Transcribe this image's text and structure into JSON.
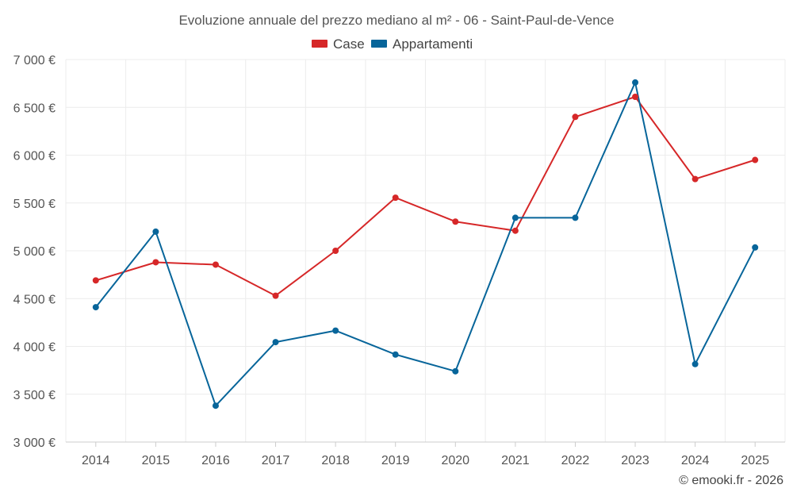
{
  "chart_data": {
    "type": "line",
    "title": "Evoluzione annuale del prezzo mediano al m² - 06 - Saint-Paul-de-Vence",
    "categories": [
      "2014",
      "2015",
      "2016",
      "2017",
      "2018",
      "2019",
      "2020",
      "2021",
      "2022",
      "2023",
      "2024",
      "2025"
    ],
    "ylim": [
      3000,
      7000
    ],
    "yticks": [
      {
        "value": 3000,
        "label": "3 000 €"
      },
      {
        "value": 3500,
        "label": "3 500 €"
      },
      {
        "value": 4000,
        "label": "4 000 €"
      },
      {
        "value": 4500,
        "label": "4 500 €"
      },
      {
        "value": 5000,
        "label": "5 000 €"
      },
      {
        "value": 5500,
        "label": "5 500 €"
      },
      {
        "value": 6000,
        "label": "6 000 €"
      },
      {
        "value": 6500,
        "label": "6 500 €"
      },
      {
        "value": 7000,
        "label": "7 000 €"
      }
    ],
    "grid": true,
    "legend_position": "top-center",
    "series": [
      {
        "name": "Case",
        "color": "#d62728",
        "values": [
          4690,
          4880,
          4855,
          4530,
          5000,
          5555,
          5305,
          5210,
          6400,
          6610,
          5750,
          5950
        ]
      },
      {
        "name": "Appartamenti",
        "color": "#07659a",
        "values": [
          4410,
          5200,
          3380,
          4045,
          4165,
          3915,
          3740,
          5345,
          5345,
          6760,
          3815,
          5035
        ]
      }
    ]
  },
  "credit": "© emooki.fr - 2026"
}
